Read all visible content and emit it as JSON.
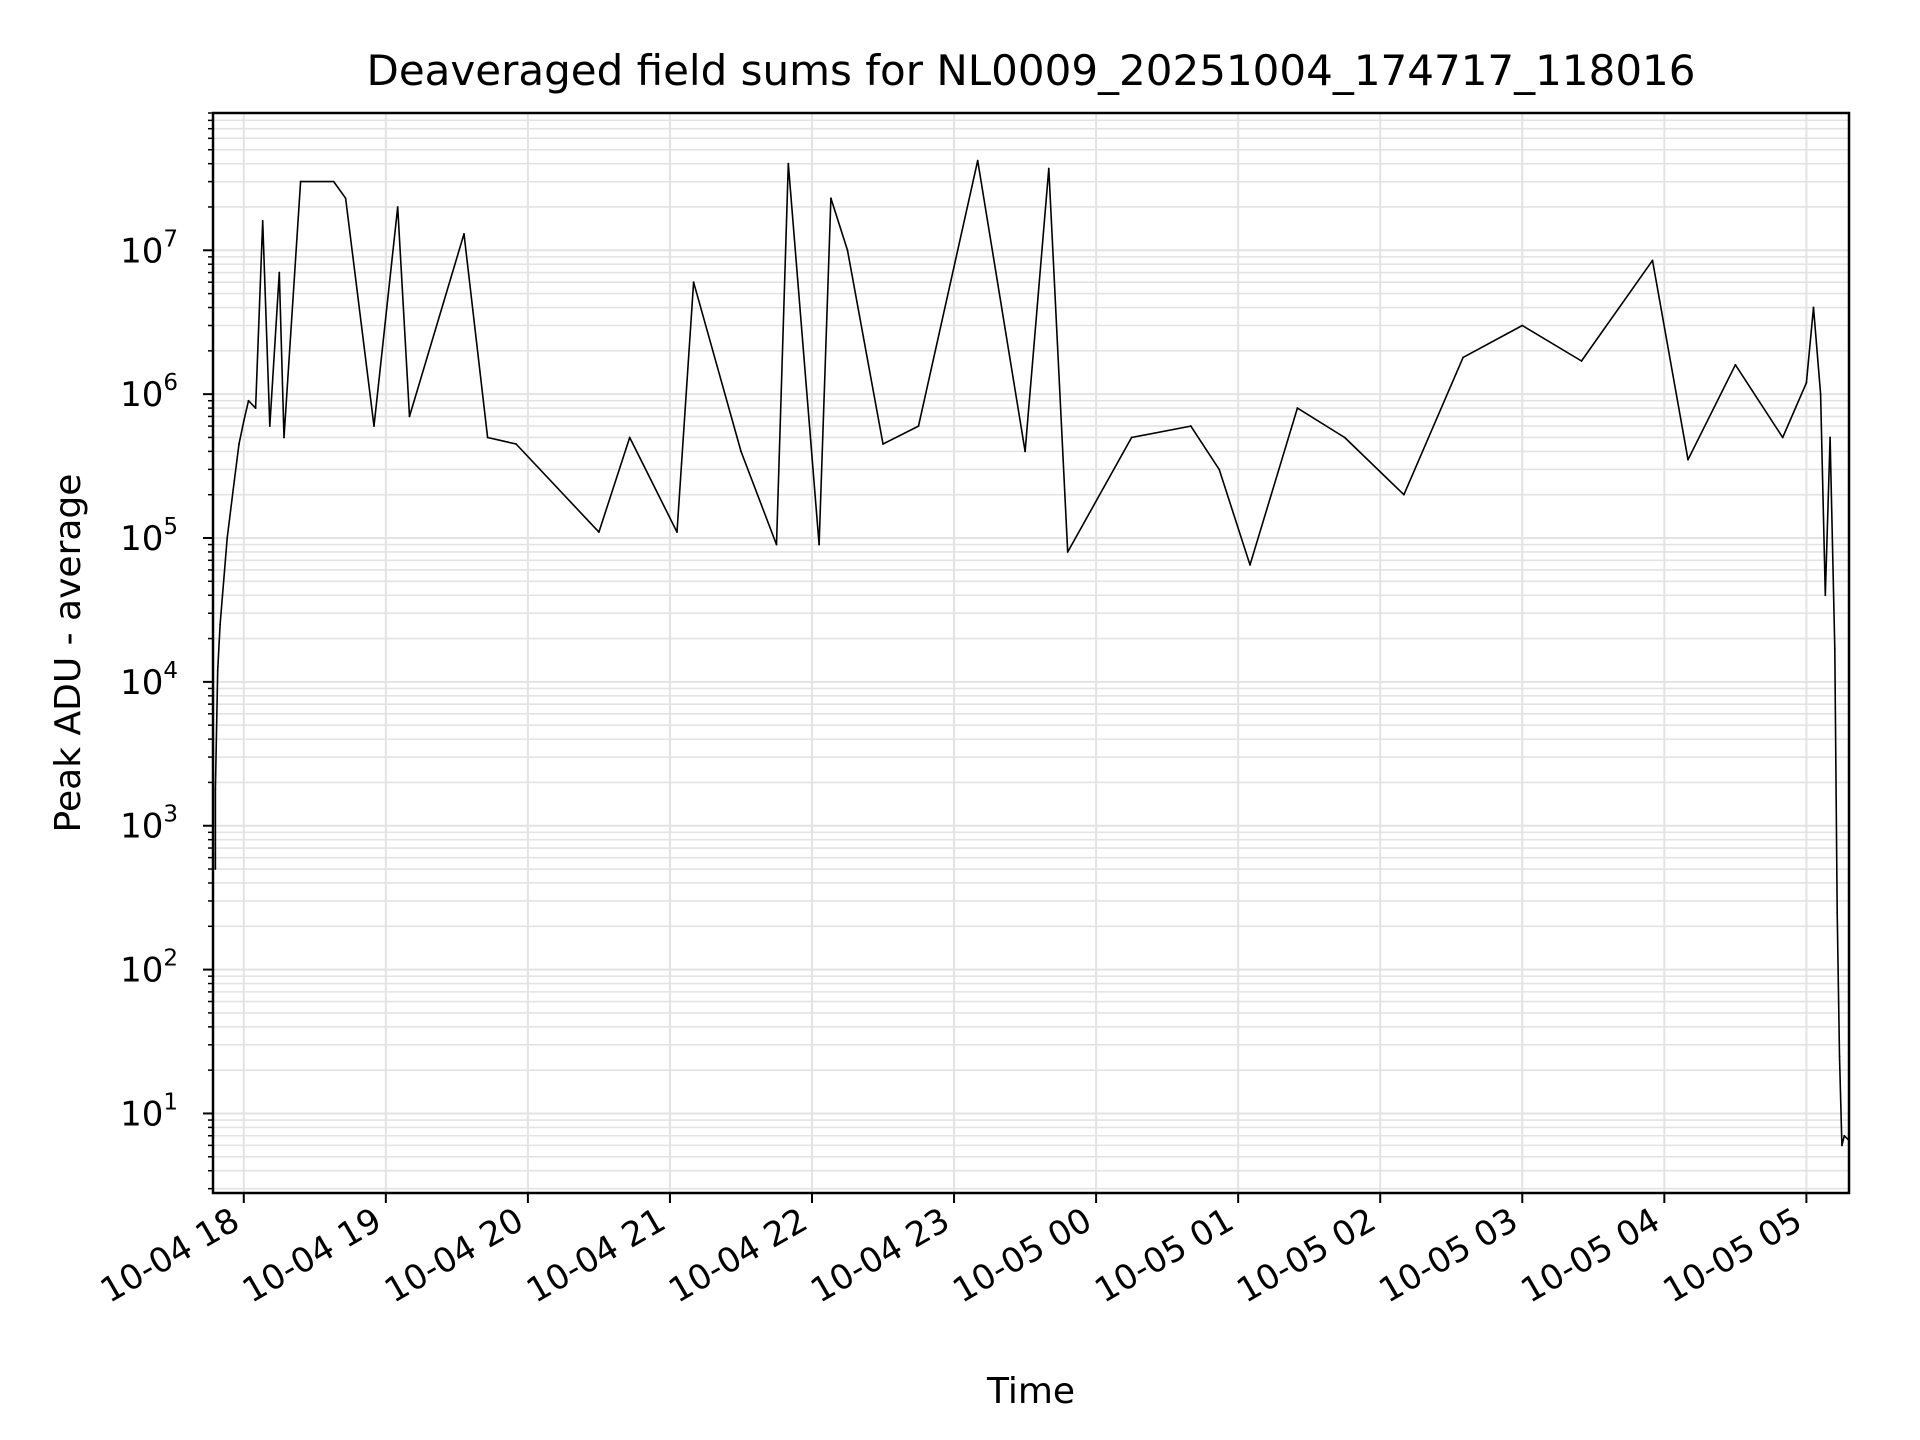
{
  "chart_data": {
    "type": "line",
    "title": "Deaveraged field sums for NL0009_20251004_174717_118016",
    "xlabel": "Time",
    "ylabel": "Peak ADU - average",
    "yscale": "log",
    "ylim": [
      2.8,
      90000000
    ],
    "xlim": [
      "2025-10-04 17:47",
      "2025-10-05 05:18"
    ],
    "grid": "major and minor, light gray",
    "x_tick_labels": [
      "10-04 18",
      "10-04 19",
      "10-04 20",
      "10-04 21",
      "10-04 22",
      "10-04 23",
      "10-05 00",
      "10-05 01",
      "10-05 02",
      "10-05 03",
      "10-05 04",
      "10-05 05"
    ],
    "y_tick_labels": [
      {
        "base": "10",
        "exp": "1"
      },
      {
        "base": "10",
        "exp": "2"
      },
      {
        "base": "10",
        "exp": "3"
      },
      {
        "base": "10",
        "exp": "4"
      },
      {
        "base": "10",
        "exp": "5"
      },
      {
        "base": "10",
        "exp": "6"
      },
      {
        "base": "10",
        "exp": "7"
      }
    ],
    "line_color": "#000000",
    "series": [
      {
        "x": [
          "2025-10-04 17:48",
          "2025-10-04 17:48",
          "2025-10-04 17:49",
          "2025-10-04 17:50",
          "2025-10-04 17:51",
          "2025-10-04 17:53",
          "2025-10-04 17:56",
          "2025-10-04 17:58",
          "2025-10-04 18:00",
          "2025-10-04 18:02",
          "2025-10-04 18:05",
          "2025-10-04 18:08",
          "2025-10-04 18:11",
          "2025-10-04 18:15",
          "2025-10-04 18:17",
          "2025-10-04 18:24",
          "2025-10-04 18:38",
          "2025-10-04 18:43",
          "2025-10-04 18:55",
          "2025-10-04 19:05",
          "2025-10-04 19:10",
          "2025-10-04 19:33",
          "2025-10-04 19:43",
          "2025-10-04 19:55",
          "2025-10-04 20:30",
          "2025-10-04 20:43",
          "2025-10-04 21:03",
          "2025-10-04 21:10",
          "2025-10-04 21:30",
          "2025-10-04 21:45",
          "2025-10-04 21:50",
          "2025-10-04 22:03",
          "2025-10-04 22:08",
          "2025-10-04 22:15",
          "2025-10-04 22:30",
          "2025-10-04 22:45",
          "2025-10-04 23:10",
          "2025-10-04 23:30",
          "2025-10-04 23:40",
          "2025-10-04 23:48",
          "2025-10-05 00:15",
          "2025-10-05 00:40",
          "2025-10-05 00:52",
          "2025-10-05 01:05",
          "2025-10-05 01:25",
          "2025-10-05 01:45",
          "2025-10-05 02:10",
          "2025-10-05 02:35",
          "2025-10-05 03:00",
          "2025-10-05 03:25",
          "2025-10-05 03:55",
          "2025-10-05 04:10",
          "2025-10-05 04:30",
          "2025-10-05 04:50",
          "2025-10-05 05:00",
          "2025-10-05 05:03",
          "2025-10-05 05:06",
          "2025-10-05 05:08",
          "2025-10-05 05:10",
          "2025-10-05 05:12",
          "2025-10-05 05:13",
          "2025-10-05 05:14",
          "2025-10-05 05:15",
          "2025-10-05 05:16",
          "2025-10-05 05:18"
        ],
        "values": [
          500,
          1800,
          12000,
          25000,
          40000,
          100000,
          250000,
          450000,
          650000,
          900000,
          800000,
          16000000,
          600000,
          7000000,
          500000,
          30000000,
          30000000,
          23000000,
          600000,
          20000000,
          700000,
          13000000,
          500000,
          450000,
          110000,
          500000,
          110000,
          6000000,
          400000,
          90000,
          40000000,
          90000,
          23000000,
          10000000,
          450000,
          600000,
          42000000,
          400000,
          37000000,
          80000,
          500000,
          600000,
          300000,
          65000,
          800000,
          500000,
          200000,
          1800000,
          3000000,
          1700000,
          8500000,
          350000,
          1600000,
          500000,
          1200000,
          4000000,
          1000000,
          40000,
          500000,
          17000,
          250,
          25,
          6,
          7,
          6.5
        ]
      }
    ]
  }
}
